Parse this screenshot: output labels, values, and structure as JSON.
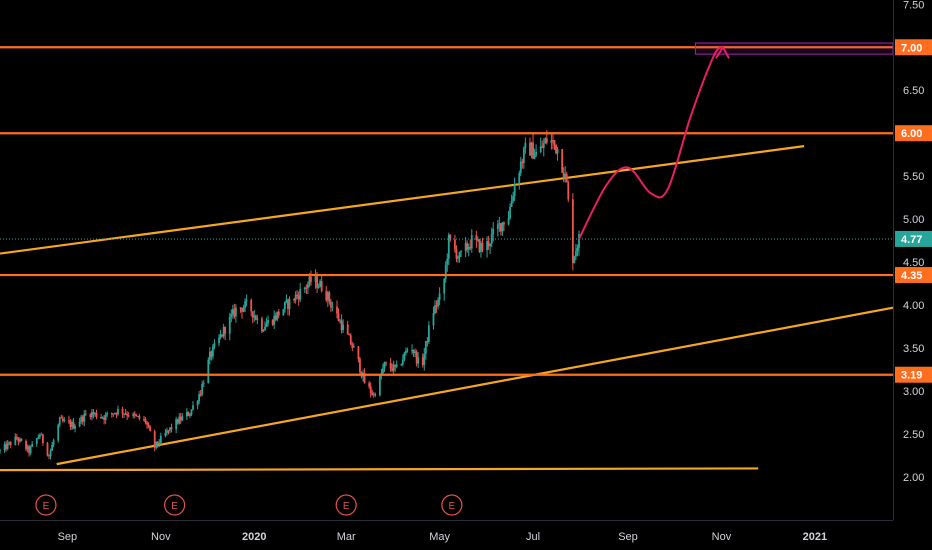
{
  "chart_data": {
    "type": "candlestick",
    "y_axis": {
      "ticks": [
        "7.50",
        "6.50",
        "5.50",
        "5.00",
        "4.50",
        "4.00",
        "3.50",
        "3.00",
        "2.50",
        "2.00"
      ],
      "tick_values": [
        7.5,
        6.5,
        5.5,
        5.0,
        4.5,
        4.0,
        3.5,
        3.0,
        2.5,
        2.0
      ],
      "ylim": [
        1.5,
        7.55
      ]
    },
    "x_axis": {
      "ticks": [
        "Sep",
        "Nov",
        "2020",
        "Mar",
        "May",
        "Jul",
        "Sep",
        "Nov",
        "2021"
      ],
      "tick_dates": [
        "2019-09-01",
        "2019-11-01",
        "2020-01-01",
        "2020-03-01",
        "2020-05-01",
        "2020-07-01",
        "2020-09-01",
        "2020-11-01",
        "2021-01-01"
      ],
      "bold": [
        "2020",
        "2021"
      ],
      "xlim": [
        "2019-07-19",
        "2021-02-21"
      ]
    },
    "levels": [
      {
        "label": "7.00",
        "value": 7.0
      },
      {
        "label": "6.00",
        "value": 6.0
      },
      {
        "label": "4.35",
        "value": 4.35
      },
      {
        "label": "3.19",
        "value": 3.19
      }
    ],
    "last_price": {
      "label": "4.77",
      "value": 4.77
    },
    "trendlines": [
      {
        "from": [
          "2019-07-19",
          4.6
        ],
        "to": [
          "2020-12-25",
          5.85
        ]
      },
      {
        "from": [
          "2019-08-25",
          2.15
        ],
        "to": [
          "2021-02-21",
          3.97
        ]
      },
      {
        "from": [
          "2019-07-19",
          2.08
        ],
        "to": [
          "2020-11-25",
          2.1
        ]
      }
    ],
    "target_box": {
      "from": [
        "2020-10-15",
        6.92
      ],
      "to": [
        "2021-02-21",
        7.05
      ]
    },
    "projection": [
      [
        "2020-07-31",
        4.77
      ],
      [
        "2020-08-18",
        5.4
      ],
      [
        "2020-09-01",
        5.6
      ],
      [
        "2020-09-16",
        5.3
      ],
      [
        "2020-09-27",
        5.35
      ],
      [
        "2020-10-12",
        6.2
      ],
      [
        "2020-10-27",
        6.9
      ],
      [
        "2020-11-02",
        7.0
      ]
    ],
    "events": [
      {
        "label": "E",
        "date": "2019-08-18"
      },
      {
        "label": "E",
        "date": "2019-11-10"
      },
      {
        "label": "E",
        "date": "2020-03-01"
      },
      {
        "label": "E",
        "date": "2020-05-09"
      }
    ],
    "price_path": [
      [
        "2019-07-19",
        2.3
      ],
      [
        "2019-07-30",
        2.45
      ],
      [
        "2019-08-07",
        2.3
      ],
      [
        "2019-08-14",
        2.5
      ],
      [
        "2019-08-20",
        2.25
      ],
      [
        "2019-08-27",
        2.65
      ],
      [
        "2019-09-05",
        2.6
      ],
      [
        "2019-09-15",
        2.75
      ],
      [
        "2019-09-25",
        2.7
      ],
      [
        "2019-10-05",
        2.78
      ],
      [
        "2019-10-15",
        2.7
      ],
      [
        "2019-10-22",
        2.65
      ],
      [
        "2019-10-28",
        2.35
      ],
      [
        "2019-11-04",
        2.5
      ],
      [
        "2019-11-12",
        2.65
      ],
      [
        "2019-11-20",
        2.75
      ],
      [
        "2019-11-27",
        3.0
      ],
      [
        "2019-12-03",
        3.4
      ],
      [
        "2019-12-12",
        3.7
      ],
      [
        "2019-12-20",
        3.95
      ],
      [
        "2019-12-28",
        4.0
      ],
      [
        "2020-01-06",
        3.75
      ],
      [
        "2020-01-14",
        3.85
      ],
      [
        "2020-01-22",
        4.0
      ],
      [
        "2020-01-31",
        4.15
      ],
      [
        "2020-02-08",
        4.3
      ],
      [
        "2020-02-15",
        4.2
      ],
      [
        "2020-02-22",
        3.95
      ],
      [
        "2020-02-29",
        3.7
      ],
      [
        "2020-03-07",
        3.45
      ],
      [
        "2020-03-13",
        3.1
      ],
      [
        "2020-03-19",
        2.95
      ],
      [
        "2020-03-26",
        3.3
      ],
      [
        "2020-04-03",
        3.25
      ],
      [
        "2020-04-12",
        3.55
      ],
      [
        "2020-04-19",
        3.25
      ],
      [
        "2020-04-26",
        3.9
      ],
      [
        "2020-05-03",
        4.15
      ],
      [
        "2020-05-07",
        4.75
      ],
      [
        "2020-05-14",
        4.55
      ],
      [
        "2020-05-22",
        4.75
      ],
      [
        "2020-05-30",
        4.65
      ],
      [
        "2020-06-08",
        4.9
      ],
      [
        "2020-06-15",
        5.05
      ],
      [
        "2020-06-20",
        5.5
      ],
      [
        "2020-06-27",
        5.85
      ],
      [
        "2020-07-04",
        5.75
      ],
      [
        "2020-07-11",
        5.95
      ],
      [
        "2020-07-18",
        5.8
      ],
      [
        "2020-07-23",
        5.4
      ],
      [
        "2020-07-27",
        4.55
      ],
      [
        "2020-07-31",
        4.77
      ]
    ]
  }
}
